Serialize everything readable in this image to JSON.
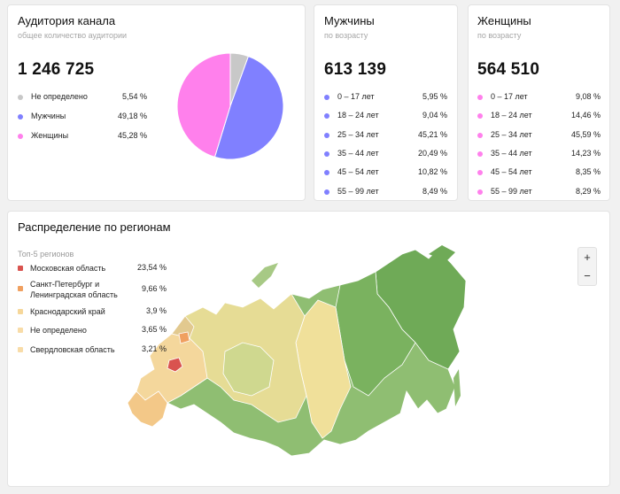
{
  "audience": {
    "title": "Аудитория канала",
    "subtitle": "общее количество аудитории",
    "total": "1 246 725",
    "legend": [
      {
        "label": "Не определено",
        "value": "5,54 %",
        "color": "#c8c8c8"
      },
      {
        "label": "Мужчины",
        "value": "49,18 %",
        "color": "#8080ff"
      },
      {
        "label": "Женщины",
        "value": "45,28 %",
        "color": "#ff80ec"
      }
    ],
    "pie": [
      {
        "fraction": 0.0554,
        "color": "#c8c8c8"
      },
      {
        "fraction": 0.4918,
        "color": "#8080ff"
      },
      {
        "fraction": 0.4528,
        "color": "#ff80ec"
      }
    ]
  },
  "men": {
    "title": "Мужчины",
    "subtitle": "по возрасту",
    "total": "613 139",
    "color": "#8080ff",
    "rows": [
      {
        "label": "0 – 17 лет",
        "value": "5,95 %"
      },
      {
        "label": "18 – 24 лет",
        "value": "9,04 %"
      },
      {
        "label": "25 – 34 лет",
        "value": "45,21 %"
      },
      {
        "label": "35 – 44 лет",
        "value": "20,49 %"
      },
      {
        "label": "45 – 54 лет",
        "value": "10,82 %"
      },
      {
        "label": "55 – 99 лет",
        "value": "8,49 %"
      }
    ]
  },
  "women": {
    "title": "Женщины",
    "subtitle": "по возрасту",
    "total": "564 510",
    "color": "#ff80ec",
    "rows": [
      {
        "label": "0 – 17 лет",
        "value": "9,08 %"
      },
      {
        "label": "18 – 24 лет",
        "value": "14,46 %"
      },
      {
        "label": "25 – 34 лет",
        "value": "45,59 %"
      },
      {
        "label": "35 – 44 лет",
        "value": "14,23 %"
      },
      {
        "label": "45 – 54 лет",
        "value": "8,35 %"
      },
      {
        "label": "55 – 99 лет",
        "value": "8,29 %"
      }
    ]
  },
  "regions": {
    "title": "Распределение по регионам",
    "top_label": "Топ-5 регионов",
    "rows": [
      {
        "label": "Московская область",
        "value": "23,54 %",
        "color": "#d9534f"
      },
      {
        "label": "Санкт-Петербург и Ленинградская область",
        "value": "9,66 %",
        "color": "#f0a060"
      },
      {
        "label": "Краснодарский край",
        "value": "3,9 %",
        "color": "#f6d79a"
      },
      {
        "label": "Не определено",
        "value": "3,65 %",
        "color": "#f8dca8"
      },
      {
        "label": "Свердловская область",
        "value": "3,21 %",
        "color": "#f8dca8"
      }
    ],
    "zoom_in": "+",
    "zoom_out": "−"
  }
}
